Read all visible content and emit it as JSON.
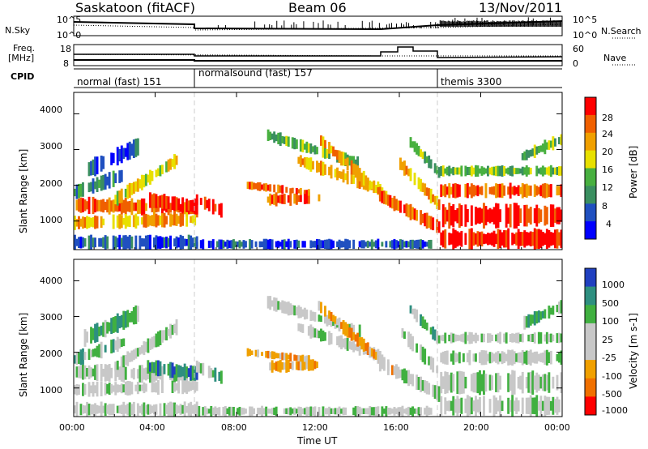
{
  "header": {
    "station": "Saskatoon (fitACF)",
    "beam": "Beam 06",
    "date": "13/Nov/2011"
  },
  "top_panels": {
    "nsky_label": "N.Sky",
    "nsky_ticks": [
      "10^5",
      "10^0"
    ],
    "nsearch_label": "N.Search",
    "nsearch_ticks": [
      "10^5",
      "10^0"
    ],
    "freq_label": "Freq.",
    "freq_unit": "[MHz]",
    "freq_ticks": [
      "18",
      "8"
    ],
    "nave_label": "Nave",
    "nave_ticks": [
      "60",
      "0"
    ],
    "cpid_label": "CPID"
  },
  "cpid_segments": [
    {
      "label": "normal (fast) 151",
      "start_hour": 0,
      "end_hour": 6
    },
    {
      "label": "normalsound (fast) 157",
      "start_hour": 6,
      "end_hour": 18
    },
    {
      "label": "themis 3300",
      "start_hour": 18,
      "end_hour": 24
    }
  ],
  "time_axis": {
    "label": "Time UT",
    "ticks": [
      "00:00",
      "04:00",
      "08:00",
      "12:00",
      "16:00",
      "20:00",
      "00:00"
    ],
    "tick_hours": [
      0,
      4,
      8,
      12,
      16,
      20,
      24
    ]
  },
  "colors": {
    "power": [
      "#0000ff",
      "#2050c0",
      "#3a8f60",
      "#48b040",
      "#e8e000",
      "#f0a000",
      "#f06000",
      "#ff0000"
    ],
    "velocity": [
      "#2040c0",
      "#2e8f80",
      "#40b040",
      "#c8c8c8",
      "#c8c8c8",
      "#f0a000",
      "#f07000",
      "#ff0000"
    ]
  },
  "chart_data": [
    {
      "type": "heatmap",
      "quantity": "Power",
      "ylabel": "Slant Range [km]",
      "yticks": [
        1000,
        2000,
        3000,
        4000
      ],
      "ylim": [
        200,
        4600
      ],
      "xlim": [
        0,
        24
      ],
      "colorbar_label": "Power [dB]",
      "colorbar_ticks": [
        "4",
        "8",
        "12",
        "16",
        "20",
        "24",
        "28"
      ],
      "colorbar_range": [
        0,
        32
      ]
    },
    {
      "type": "heatmap",
      "quantity": "Velocity",
      "ylabel": "Slant Range [km]",
      "yticks": [
        1000,
        2000,
        3000,
        4000
      ],
      "ylim": [
        200,
        4600
      ],
      "xlim": [
        0,
        24
      ],
      "colorbar_label": "Velocity [m s-1]",
      "colorbar_ticks": [
        "1000",
        "500",
        "100",
        "25",
        "-25",
        "-100",
        "-500",
        "-1000"
      ]
    }
  ]
}
